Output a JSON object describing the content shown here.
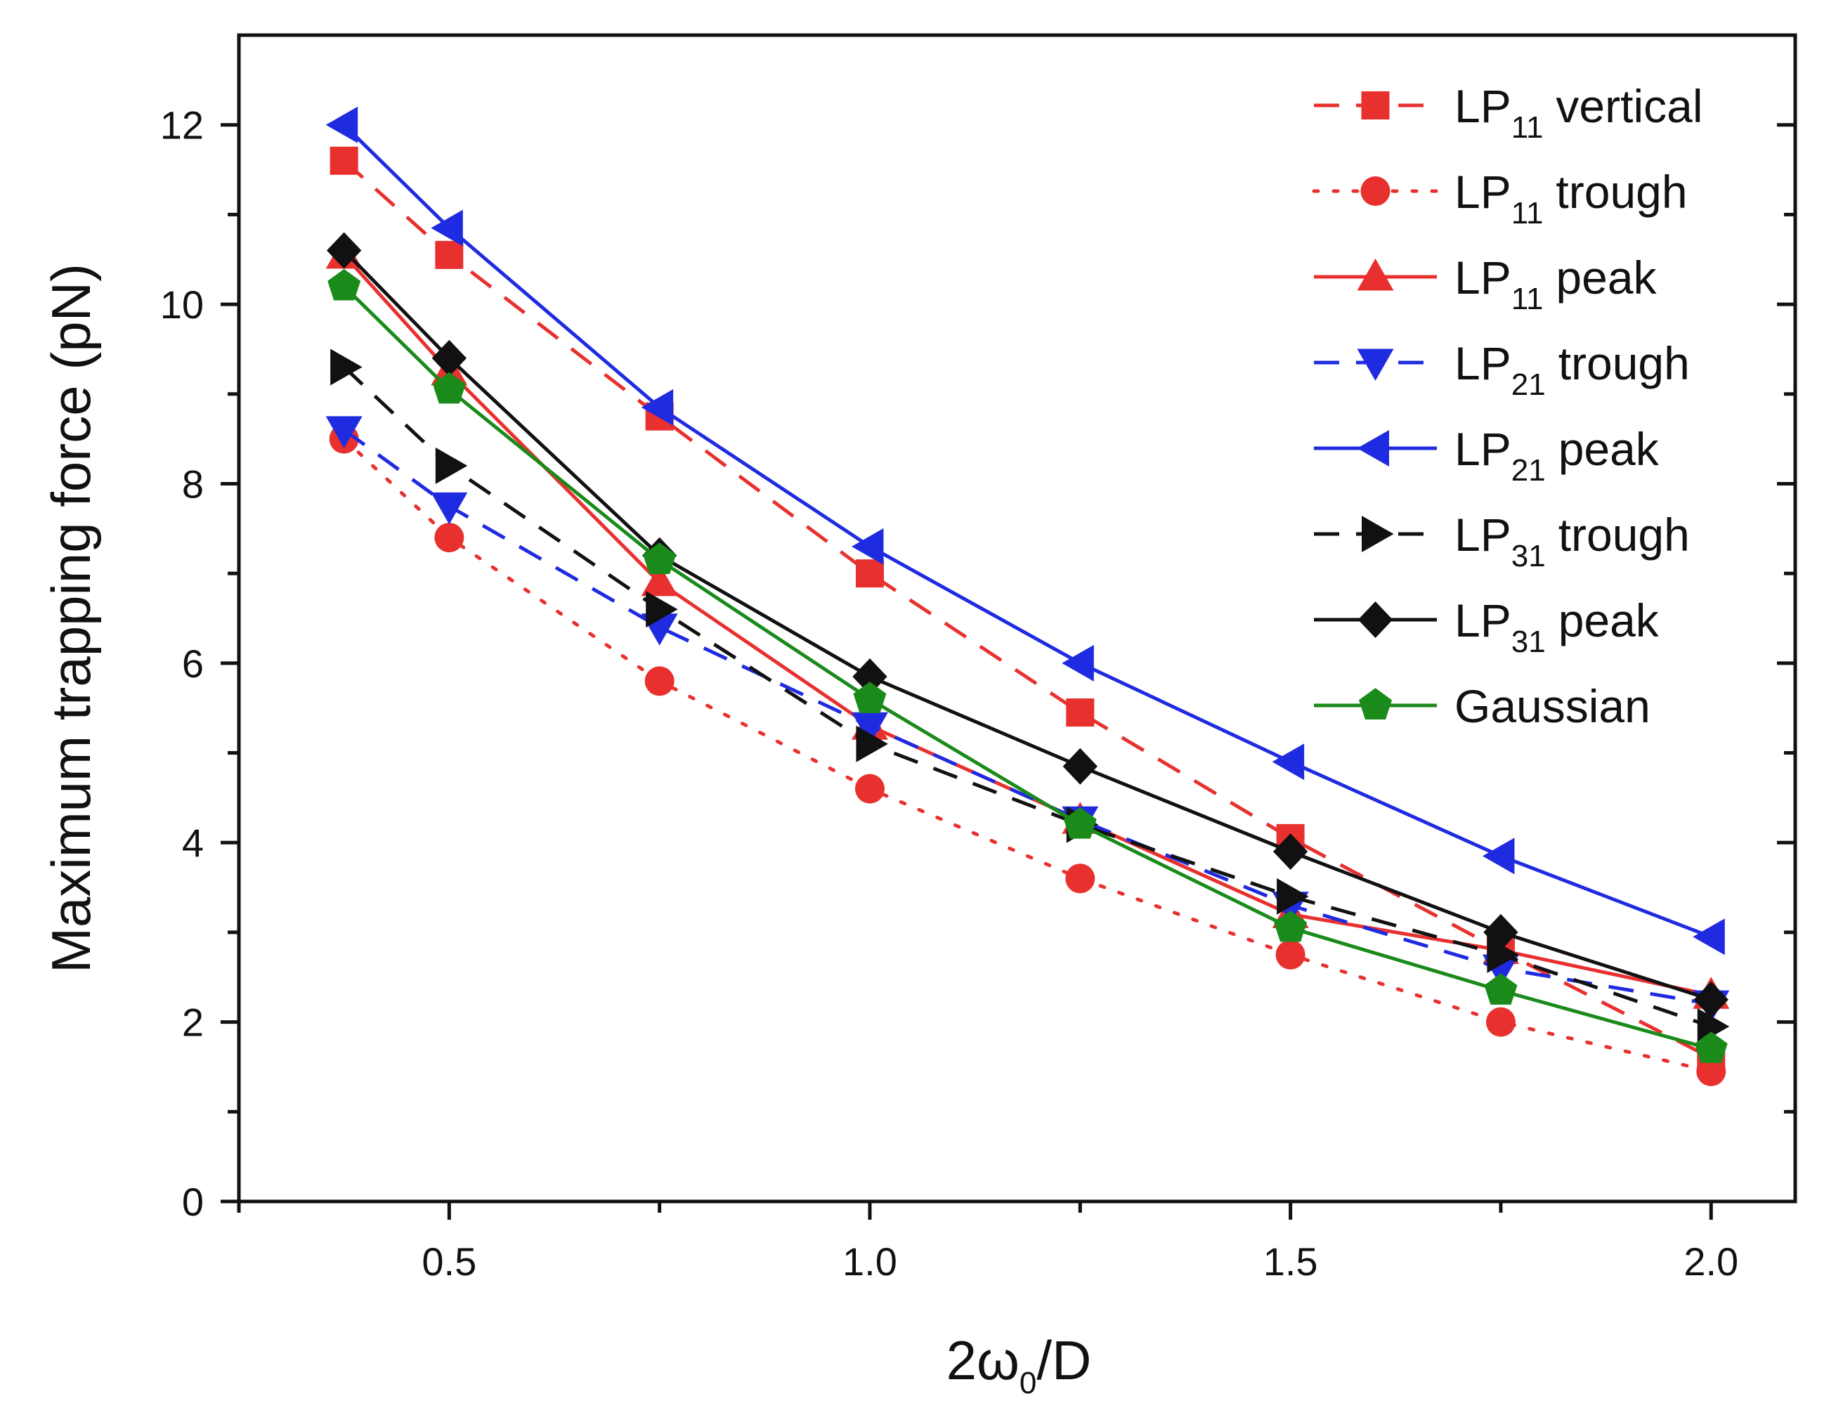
{
  "chart_data": {
    "type": "line",
    "title": "",
    "xlabel": {
      "prefix": "2ω",
      "sub": "0",
      "suffix": "/D"
    },
    "ylabel": "Maximum trapping force (pN)",
    "xlim": [
      0.25,
      2.1
    ],
    "ylim": [
      0,
      13
    ],
    "xticks": [
      0.5,
      1.0,
      1.5,
      2.0
    ],
    "xtick_labels": [
      "0.5",
      "1.0",
      "1.5",
      "2.0"
    ],
    "x_minor_ticks": [
      0.25,
      0.75,
      1.25,
      1.75
    ],
    "yticks": [
      0,
      2,
      4,
      6,
      8,
      10,
      12
    ],
    "ytick_labels": [
      "0",
      "2",
      "4",
      "6",
      "8",
      "10",
      "12"
    ],
    "y_minor_ticks": [
      1,
      3,
      5,
      7,
      9,
      11
    ],
    "grid": false,
    "legend_position": "top-right",
    "x": [
      0.375,
      0.5,
      0.75,
      1.0,
      1.25,
      1.5,
      1.75,
      2.0
    ],
    "series": [
      {
        "name": "LP11 vertical",
        "label_main": "LP",
        "label_sub": "11",
        "label_rest": "vertical",
        "color": "#e8312f",
        "dash": "dashed",
        "marker": "square",
        "values": [
          11.6,
          10.55,
          8.75,
          7.0,
          5.45,
          4.05,
          2.8,
          1.6
        ]
      },
      {
        "name": "LP11 trough",
        "label_main": "LP",
        "label_sub": "11",
        "label_rest": "trough",
        "color": "#e8312f",
        "dash": "dotted",
        "marker": "circle",
        "values": [
          8.5,
          7.4,
          5.8,
          4.6,
          3.6,
          2.75,
          2.0,
          1.45
        ]
      },
      {
        "name": "LP11 peak",
        "label_main": "LP",
        "label_sub": "11",
        "label_rest": "peak",
        "color": "#e8312f",
        "dash": "solid",
        "marker": "triangle-up",
        "values": [
          10.55,
          9.25,
          6.9,
          5.3,
          4.25,
          3.2,
          2.8,
          2.3
        ]
      },
      {
        "name": "LP21 trough",
        "label_main": "LP",
        "label_sub": "21",
        "label_rest": "trough",
        "color": "#1f2be0",
        "dash": "dashed",
        "marker": "triangle-down",
        "values": [
          8.6,
          7.75,
          6.4,
          5.3,
          4.25,
          3.3,
          2.6,
          2.2
        ]
      },
      {
        "name": "LP21 peak",
        "label_main": "LP",
        "label_sub": "21",
        "label_rest": "peak",
        "color": "#1f2be0",
        "dash": "solid",
        "marker": "triangle-left",
        "values": [
          12.0,
          10.85,
          8.85,
          7.3,
          6.0,
          4.9,
          3.85,
          2.95
        ]
      },
      {
        "name": "LP31 trough",
        "label_main": "LP",
        "label_sub": "31",
        "label_rest": "trough",
        "color": "#111111",
        "dash": "dashed",
        "marker": "triangle-right",
        "values": [
          9.3,
          8.2,
          6.6,
          5.1,
          4.2,
          3.4,
          2.75,
          1.95
        ]
      },
      {
        "name": "LP31 peak",
        "label_main": "LP",
        "label_sub": "31",
        "label_rest": "peak",
        "color": "#111111",
        "dash": "solid",
        "marker": "diamond",
        "values": [
          10.6,
          9.4,
          7.2,
          5.85,
          4.85,
          3.9,
          3.0,
          2.25
        ]
      },
      {
        "name": "Gaussian",
        "label_main": "Gaussian",
        "label_sub": "",
        "label_rest": "",
        "color": "#1a8a1a",
        "dash": "solid",
        "marker": "pentagon",
        "values": [
          10.2,
          9.05,
          7.15,
          5.6,
          4.2,
          3.05,
          2.35,
          1.7
        ]
      }
    ]
  }
}
